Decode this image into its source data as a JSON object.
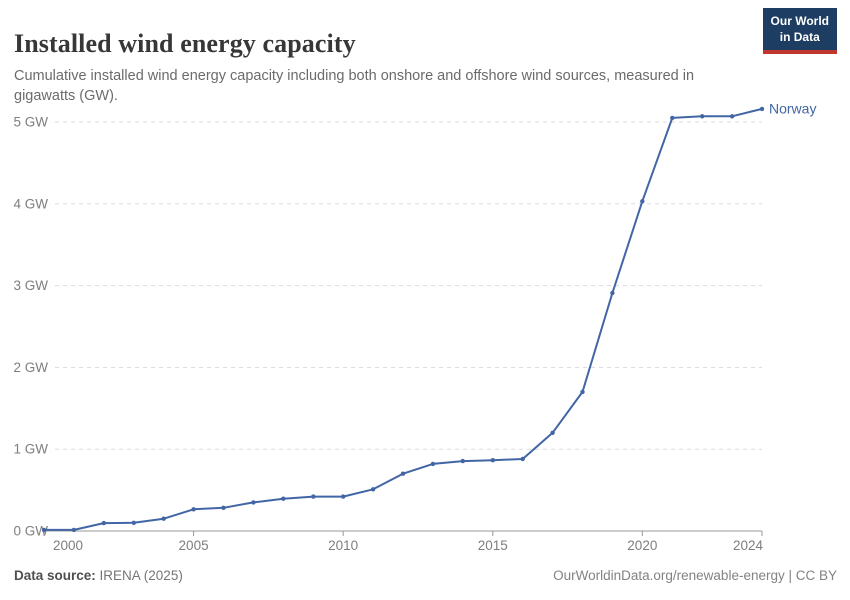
{
  "header": {
    "title": "Installed wind energy capacity",
    "subtitle": "Cumulative installed wind energy capacity including both onshore and offshore wind sources, measured in gigawatts (GW).",
    "logo": {
      "line1": "Our World",
      "line2": "in Data"
    }
  },
  "chart_data": {
    "type": "line",
    "title": "Installed wind energy capacity",
    "unit": "GW",
    "x": [
      2000,
      2001,
      2002,
      2003,
      2004,
      2005,
      2006,
      2007,
      2008,
      2009,
      2010,
      2011,
      2012,
      2013,
      2014,
      2015,
      2016,
      2017,
      2018,
      2019,
      2020,
      2021,
      2022,
      2023,
      2024
    ],
    "series": [
      {
        "name": "Norway",
        "color": "#4266a5",
        "values": [
          0.013,
          0.013,
          0.097,
          0.1,
          0.15,
          0.265,
          0.284,
          0.35,
          0.395,
          0.42,
          0.42,
          0.51,
          0.7,
          0.82,
          0.855,
          0.865,
          0.88,
          1.2,
          1.7,
          2.91,
          4.03,
          5.05,
          5.07,
          5.07,
          5.16
        ]
      }
    ],
    "xlim": [
      2000,
      2024
    ],
    "ylim": [
      0,
      5.45
    ],
    "x_ticks": [
      2000,
      2005,
      2010,
      2015,
      2020,
      2024
    ],
    "x_tick_labels": [
      "2000",
      "2005",
      "2010",
      "2015",
      "2020",
      "2024"
    ],
    "y_ticks": [
      0,
      1,
      2,
      3,
      4,
      5
    ],
    "y_tick_labels": [
      "0 GW",
      "1 GW",
      "2 GW",
      "3 GW",
      "4 GW",
      "5 GW"
    ],
    "grid": "horizontal-dashed",
    "legend_position": "end-of-line-label",
    "end_label": "Norway"
  },
  "footer": {
    "source_label": "Data source:",
    "source_value": " IRENA (2025)",
    "attribution": "OurWorldinData.org/renewable-energy | CC BY"
  },
  "colors": {
    "line": "#4266a5",
    "title_text": "#373737",
    "subtitle_text": "#6b6b6b",
    "tick_text": "#7e7e7e",
    "gridline": "#dadada",
    "axis_line": "#999999",
    "logo_bg": "#1d3d63",
    "logo_red": "#c0362c"
  }
}
